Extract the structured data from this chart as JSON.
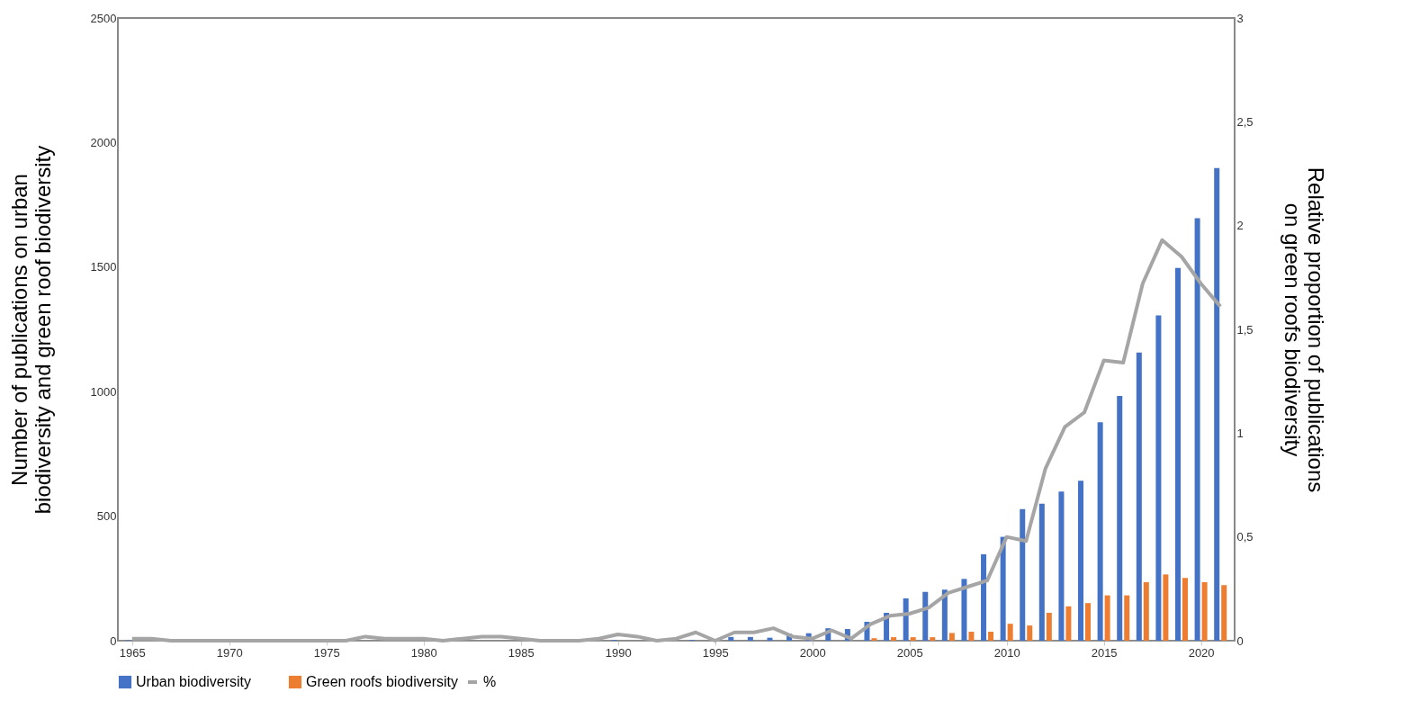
{
  "chart_data": {
    "type": "bar",
    "ylabel": "Number of publications on urban biodiversity and green roof biodiversity",
    "y2label": "Relative proportion of publications on green roofs biodiversity",
    "x": [
      1965,
      1966,
      1967,
      1968,
      1969,
      1970,
      1971,
      1972,
      1973,
      1974,
      1975,
      1976,
      1977,
      1978,
      1979,
      1980,
      1981,
      1982,
      1983,
      1984,
      1985,
      1986,
      1987,
      1988,
      1989,
      1990,
      1991,
      1992,
      1993,
      1994,
      1995,
      1996,
      1997,
      1998,
      1999,
      2000,
      2001,
      2002,
      2003,
      2004,
      2005,
      2006,
      2007,
      2008,
      2009,
      2010,
      2011,
      2012,
      2013,
      2014,
      2015,
      2016,
      2017,
      2018,
      2019,
      2020,
      2021
    ],
    "series": [
      {
        "name": "Urban biodiversity",
        "color": "#4472c4",
        "values": [
          2,
          0,
          0,
          0,
          0,
          0,
          0,
          0,
          0,
          0,
          0,
          0,
          null,
          0,
          0,
          0,
          0,
          0,
          null,
          0,
          0,
          0,
          0,
          0,
          0,
          3,
          0,
          0,
          0,
          3,
          null,
          15,
          15,
          12,
          28,
          30,
          50,
          47,
          76,
          112,
          170,
          196,
          205,
          248,
          347,
          417,
          528,
          550,
          599,
          642,
          877,
          983,
          1157,
          1306,
          1497,
          1696,
          1898
        ]
      },
      {
        "name": "Green roofs biodiversity",
        "color": "#ed7d31",
        "values": [
          0,
          0,
          0,
          0,
          0,
          0,
          0,
          0,
          0,
          0,
          0,
          0,
          0,
          0,
          0,
          0,
          0,
          0,
          0,
          0,
          0,
          0,
          0,
          0,
          0,
          0,
          0,
          0,
          0,
          0,
          0,
          0,
          0,
          0,
          0,
          0,
          0,
          0,
          10,
          14,
          14,
          14,
          31,
          36,
          36,
          68,
          61,
          112,
          138,
          151,
          182,
          182,
          235,
          266,
          252,
          235,
          223
        ]
      },
      {
        "name": "%",
        "type": "line",
        "axis": "y2",
        "color": "#a5a5a5",
        "values": [
          0.01,
          0.01,
          0,
          0,
          0,
          0,
          0,
          0,
          0,
          0,
          0,
          0,
          0.02,
          0.01,
          0.01,
          0.01,
          0,
          0.01,
          0.02,
          0.02,
          0.01,
          0,
          0,
          0,
          0.01,
          0.03,
          0.02,
          0,
          0.01,
          0.04,
          0,
          0.04,
          0.04,
          0.06,
          0.02,
          0.01,
          0.05,
          0.01,
          0.08,
          0.12,
          0.13,
          0.16,
          0.23,
          0.26,
          0.29,
          0.5,
          0.48,
          0.83,
          1.03,
          1.1,
          1.35,
          1.34,
          1.72,
          1.93,
          1.85,
          1.72,
          1.61
        ]
      }
    ],
    "xlim": [
      1964.5,
      2021.5
    ],
    "xticks": [
      1965,
      1970,
      1975,
      1980,
      1985,
      1990,
      1995,
      2000,
      2005,
      2010,
      2015,
      2020
    ],
    "ylim": [
      0,
      2500
    ],
    "yticks": [
      0,
      500,
      1000,
      1500,
      2000,
      2500
    ],
    "y2lim": [
      0,
      3
    ],
    "y2ticks": [
      0,
      {
        "value": 0.5,
        "label": "0,5"
      },
      1,
      {
        "value": 1.5,
        "label": "1,5"
      },
      2,
      {
        "value": 2.5,
        "label": "2,5"
      },
      3
    ],
    "grid": false,
    "legend": "bottom"
  }
}
